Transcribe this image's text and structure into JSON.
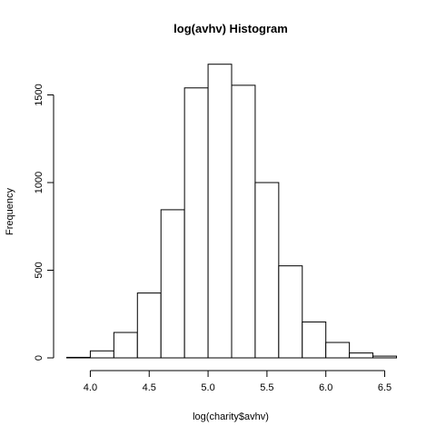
{
  "chart_data": {
    "type": "bar",
    "title": "log(avhv) Histogram",
    "xlabel": "log(charity$avhv)",
    "ylabel": "Frequency",
    "bins": [
      {
        "x0": 3.8,
        "x1": 4.0,
        "count": 3
      },
      {
        "x0": 4.0,
        "x1": 4.2,
        "count": 40
      },
      {
        "x0": 4.2,
        "x1": 4.4,
        "count": 145
      },
      {
        "x0": 4.4,
        "x1": 4.6,
        "count": 370
      },
      {
        "x0": 4.6,
        "x1": 4.8,
        "count": 845
      },
      {
        "x0": 4.8,
        "x1": 5.0,
        "count": 1540
      },
      {
        "x0": 5.0,
        "x1": 5.2,
        "count": 1675
      },
      {
        "x0": 5.2,
        "x1": 5.4,
        "count": 1555
      },
      {
        "x0": 5.4,
        "x1": 5.6,
        "count": 1000
      },
      {
        "x0": 5.6,
        "x1": 5.8,
        "count": 525
      },
      {
        "x0": 5.8,
        "x1": 6.0,
        "count": 205
      },
      {
        "x0": 6.0,
        "x1": 6.2,
        "count": 88
      },
      {
        "x0": 6.2,
        "x1": 6.4,
        "count": 28
      },
      {
        "x0": 6.4,
        "x1": 6.6,
        "count": 10
      }
    ],
    "xlim": [
      3.8,
      6.6
    ],
    "ylim": [
      0,
      1750
    ],
    "xticks": [
      4.0,
      4.5,
      5.0,
      5.5,
      6.0,
      6.5
    ],
    "xtick_labels": [
      "4.0",
      "4.5",
      "5.0",
      "5.5",
      "6.0",
      "6.5"
    ],
    "yticks": [
      0,
      500,
      1000,
      1500
    ],
    "ytick_labels": [
      "0",
      "500",
      "1000",
      "1500"
    ],
    "bar_fill": "#ffffff",
    "bar_stroke": "#000000",
    "grid": false
  }
}
